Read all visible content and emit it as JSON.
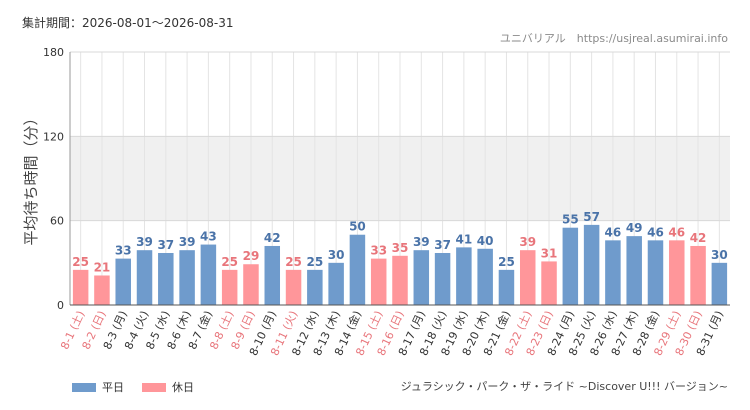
{
  "header": {
    "period_label": "集計期間：2026-08-01～2026-08-31",
    "source": "ユニバリアル　https://usjreal.asumirai.info"
  },
  "footer": {
    "attraction": "ジュラシック・パーク・ザ・ライド ~Discover U!!! バージョン~"
  },
  "legend": [
    {
      "label": "平日",
      "color": "#6f9bcc"
    },
    {
      "label": "休日",
      "color": "#ff969a"
    }
  ],
  "colors": {
    "weekday": "#6f9bcc",
    "holiday": "#ff969a",
    "weekday_value": "#4a73a8",
    "holiday_value": "#e8757b",
    "weekday_label": "#333333",
    "holiday_label": "#e8757b",
    "band": "#f0f0f0"
  },
  "chart_data": {
    "type": "bar",
    "ylabel": "平均待ち時間（分）",
    "ylim": [
      0,
      180
    ],
    "yticks": [
      0,
      60,
      120,
      180
    ],
    "shaded_band": [
      60,
      120
    ],
    "grid": true,
    "legend_position": "bottom-left",
    "categories": [
      "8-1 (土)",
      "8-2 (日)",
      "8-3 (月)",
      "8-4 (火)",
      "8-5 (水)",
      "8-6 (木)",
      "8-7 (金)",
      "8-8 (土)",
      "8-9 (日)",
      "8-10 (月)",
      "8-11 (火)",
      "8-12 (水)",
      "8-13 (木)",
      "8-14 (金)",
      "8-15 (土)",
      "8-16 (日)",
      "8-17 (月)",
      "8-18 (火)",
      "8-19 (水)",
      "8-20 (木)",
      "8-21 (金)",
      "8-22 (土)",
      "8-23 (日)",
      "8-24 (月)",
      "8-25 (火)",
      "8-26 (水)",
      "8-27 (木)",
      "8-28 (金)",
      "8-29 (土)",
      "8-30 (日)",
      "8-31 (月)"
    ],
    "values": [
      25,
      21,
      33,
      39,
      37,
      39,
      43,
      25,
      29,
      42,
      25,
      25,
      30,
      50,
      33,
      35,
      39,
      37,
      41,
      40,
      25,
      39,
      31,
      55,
      57,
      46,
      49,
      46,
      46,
      42,
      30
    ],
    "day_type": [
      "休日",
      "休日",
      "平日",
      "平日",
      "平日",
      "平日",
      "平日",
      "休日",
      "休日",
      "平日",
      "休日",
      "平日",
      "平日",
      "平日",
      "休日",
      "休日",
      "平日",
      "平日",
      "平日",
      "平日",
      "平日",
      "休日",
      "休日",
      "平日",
      "平日",
      "平日",
      "平日",
      "平日",
      "休日",
      "休日",
      "平日"
    ]
  }
}
